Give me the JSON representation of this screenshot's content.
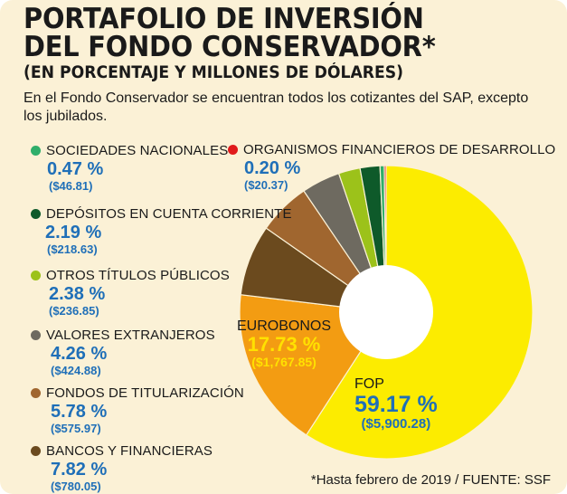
{
  "header": {
    "title": "PORTAFOLIO DE INVERSIÓN\nDEL FONDO CONSERVADOR*",
    "subtitle": "(EN PORCENTAJE Y MILLONES DE DÓLARES)",
    "description": "En el Fondo Conservador se encuentran todos los cotizantes del SAP, excepto los jubilados."
  },
  "chart_data": {
    "type": "pie",
    "title": "PORTAFOLIO DE INVERSIÓN DEL FONDO CONSERVADOR*",
    "subtitle": "(EN PORCENTAJE Y MILLONES DE DÓLARES)",
    "slices": [
      {
        "label": "FOP",
        "pct": 59.17,
        "pct_text": "59.17 %",
        "amount": 5900.28,
        "amount_text": "($5,900.28)",
        "color": "#fcec00"
      },
      {
        "label": "EUROBONOS",
        "pct": 17.73,
        "pct_text": "17.73 %",
        "amount": 1767.85,
        "amount_text": "($1,767.85)",
        "color": "#f39c12"
      },
      {
        "label": "BANCOS Y FINANCIERAS",
        "pct": 7.82,
        "pct_text": "7.82 %",
        "amount": 780.05,
        "amount_text": "($780.05)",
        "color": "#6b4a1e"
      },
      {
        "label": "FONDOS DE TITULARIZACIÓN",
        "pct": 5.78,
        "pct_text": "5.78 %",
        "amount": 575.97,
        "amount_text": "($575.97)",
        "color": "#a0662f"
      },
      {
        "label": "VALORES EXTRANJEROS",
        "pct": 4.26,
        "pct_text": "4.26 %",
        "amount": 424.88,
        "amount_text": "($424.88)",
        "color": "#6e6a60"
      },
      {
        "label": "OTROS TÍTULOS PÚBLICOS",
        "pct": 2.38,
        "pct_text": "2.38 %",
        "amount": 236.85,
        "amount_text": "($236.85)",
        "color": "#9cc21a"
      },
      {
        "label": "DEPÓSITOS EN CUENTA CORRIENTE",
        "pct": 2.19,
        "pct_text": "2.19 %",
        "amount": 218.63,
        "amount_text": "($218.63)",
        "color": "#0e5a2a"
      },
      {
        "label": "SOCIEDADES NACIONALES",
        "pct": 0.47,
        "pct_text": "0.47 %",
        "amount": 46.81,
        "amount_text": "($46.81)",
        "color": "#2fae6a"
      },
      {
        "label": "ORGANISMOS FINANCIEROS DE DESARROLLO",
        "pct": 0.2,
        "pct_text": "0.20 %",
        "amount": 20.37,
        "amount_text": "($20.37)",
        "color": "#e01b1b"
      }
    ],
    "legend_placement": "left"
  },
  "footer": {
    "source": "*Hasta febrero de 2019 / FUENTE: SSF"
  }
}
